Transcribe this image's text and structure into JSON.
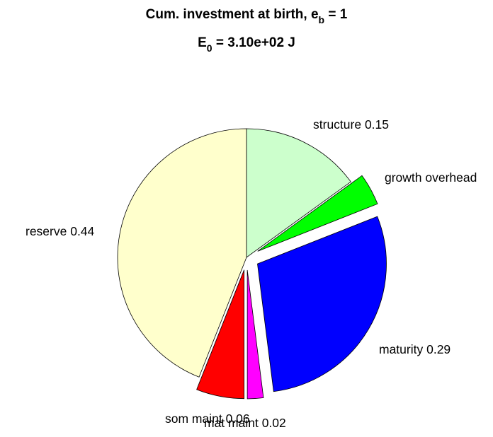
{
  "chart_data": {
    "type": "pie",
    "title": {
      "line1_prefix": "Cum. investment at birth, e",
      "line1_subscript": "b",
      "line1_suffix": " = 1",
      "line2_prefix": "E",
      "line2_subscript": "0",
      "line2_suffix": " = 3.10e+02 J"
    },
    "slices": [
      {
        "name": "structure",
        "label": "structure 0.15",
        "value": 0.15,
        "color": "#ccffcc",
        "exploded": false
      },
      {
        "name": "growth-overhead",
        "label": "growth overhead",
        "value": 0.04,
        "color": "#00ff00",
        "exploded": true
      },
      {
        "name": "maturity",
        "label": "maturity 0.29",
        "value": 0.29,
        "color": "#0000ff",
        "exploded": true
      },
      {
        "name": "mat-maint",
        "label": "mat maint 0.02",
        "value": 0.02,
        "color": "#ff00ff",
        "exploded": true
      },
      {
        "name": "som-maint",
        "label": "som maint 0.06",
        "value": 0.06,
        "color": "#ff0000",
        "exploded": true
      },
      {
        "name": "reserve",
        "label": "reserve 0.44",
        "value": 0.44,
        "color": "#ffffcc",
        "exploded": false
      }
    ]
  }
}
